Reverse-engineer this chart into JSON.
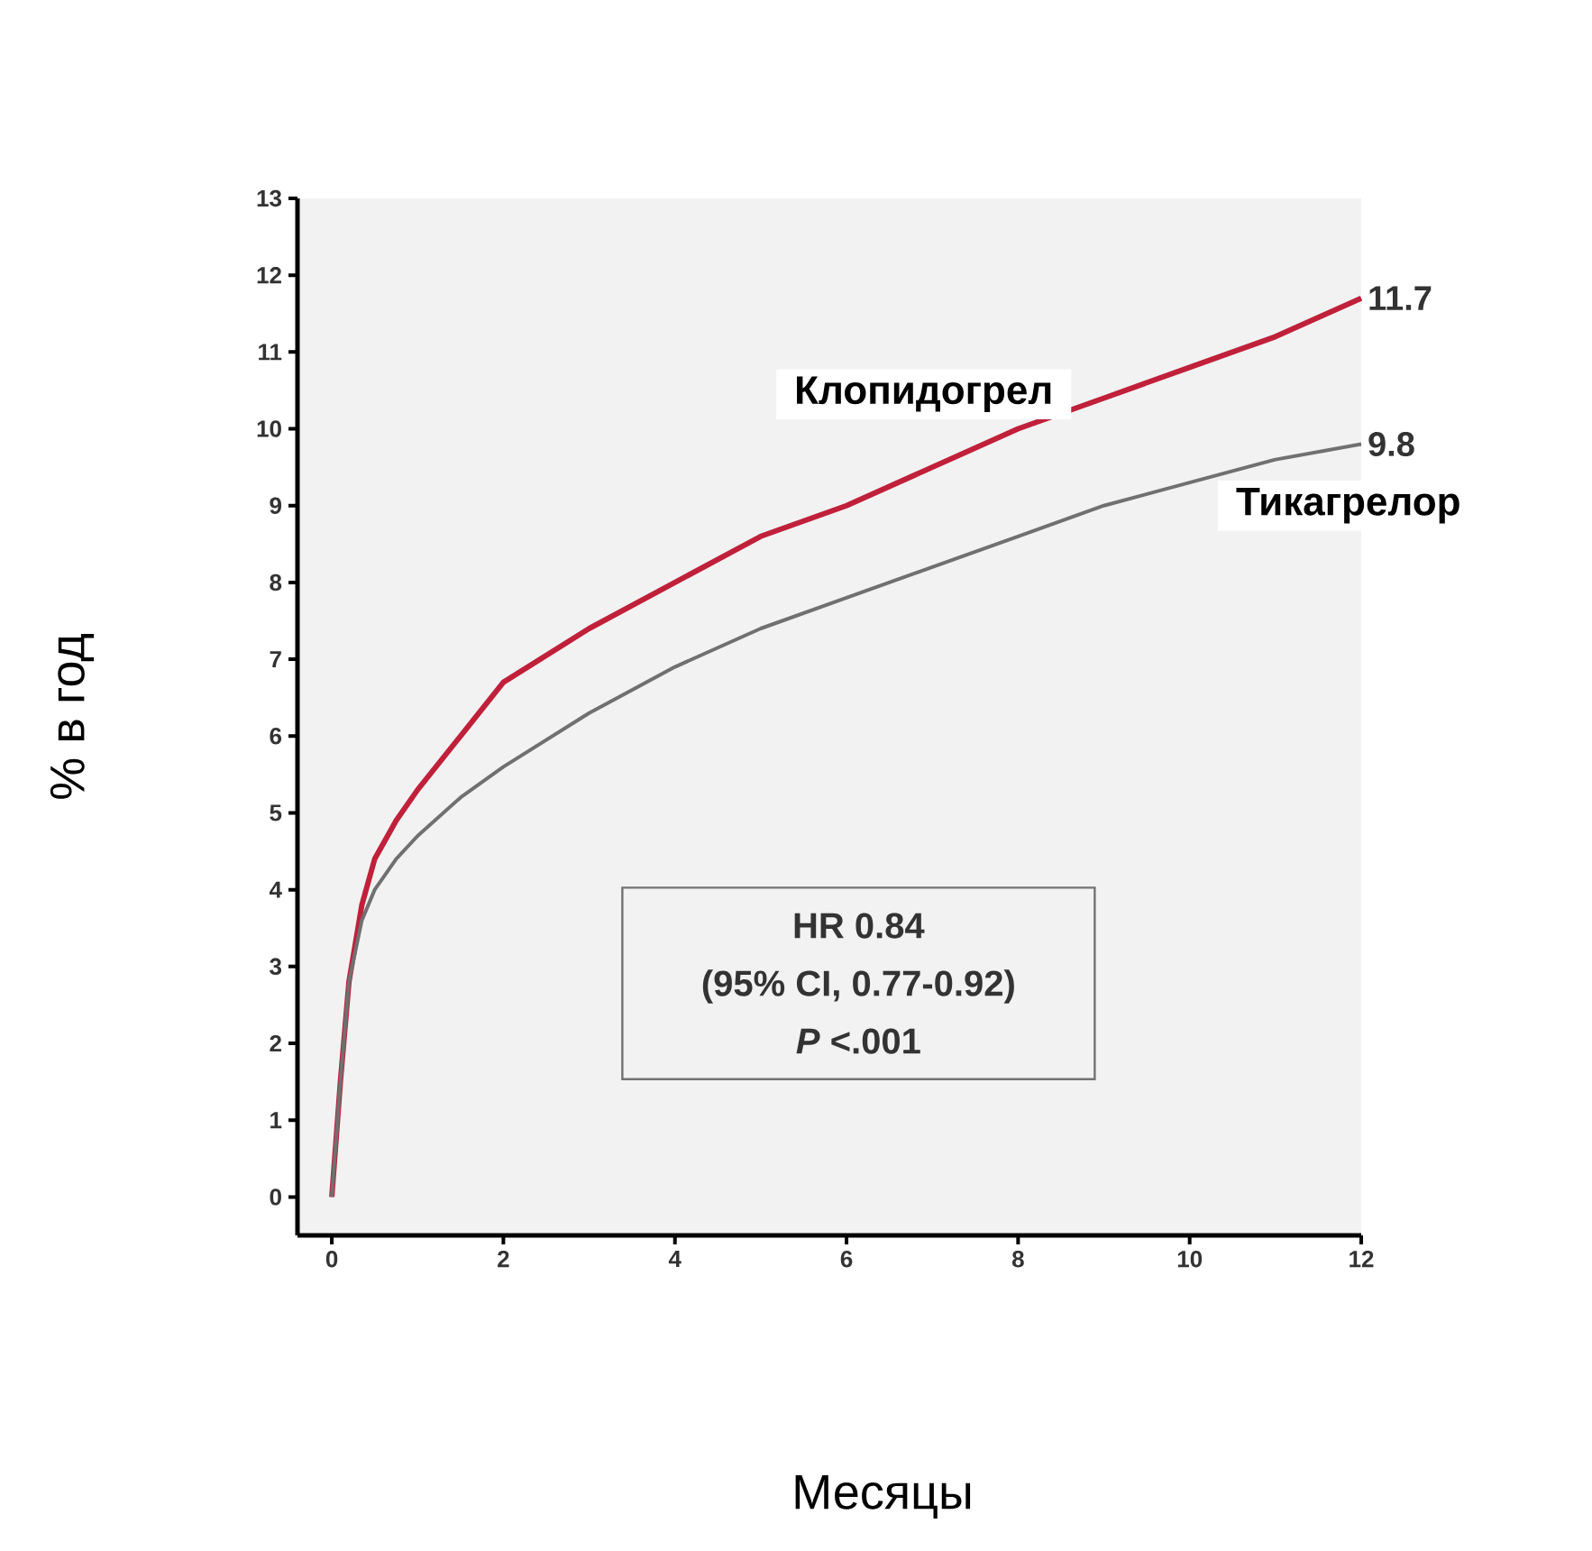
{
  "chart_data": {
    "type": "line",
    "xlabel": "Месяцы",
    "ylabel": "% в год",
    "xlim": [
      -0.4,
      12
    ],
    "ylim": [
      -0.5,
      13
    ],
    "xticks": [
      0,
      2,
      4,
      6,
      8,
      10,
      12
    ],
    "yticks": [
      0,
      1,
      2,
      3,
      4,
      5,
      6,
      7,
      8,
      9,
      10,
      11,
      12,
      13
    ],
    "series": [
      {
        "name": "Клопидогрел",
        "color": "#c0203a",
        "x": [
          0,
          0.1,
          0.2,
          0.35,
          0.5,
          0.75,
          1,
          1.5,
          2,
          3,
          4,
          5,
          6,
          7,
          8,
          9,
          10,
          11,
          12
        ],
        "values": [
          0,
          1.5,
          2.8,
          3.8,
          4.4,
          4.9,
          5.3,
          6.0,
          6.7,
          7.4,
          8.0,
          8.6,
          9.0,
          9.5,
          10.0,
          10.4,
          10.8,
          11.2,
          11.7
        ]
      },
      {
        "name": "Тикагрелор",
        "color": "#707070",
        "x": [
          0,
          0.1,
          0.2,
          0.35,
          0.5,
          0.75,
          1,
          1.5,
          2,
          3,
          4,
          5,
          6,
          7,
          8,
          9,
          10,
          11,
          12
        ],
        "values": [
          0,
          1.5,
          2.8,
          3.6,
          4.0,
          4.4,
          4.7,
          5.2,
          5.6,
          6.3,
          6.9,
          7.4,
          7.8,
          8.2,
          8.6,
          9.0,
          9.3,
          9.6,
          9.8
        ]
      }
    ],
    "annotations": [
      {
        "text": "11.7",
        "x": 12,
        "y": 11.7
      },
      {
        "text": "9.8",
        "x": 12,
        "y": 9.8
      },
      "HR 0.84",
      "(95% CI, 0.77-0.92)",
      "*P* <.001"
    ]
  }
}
